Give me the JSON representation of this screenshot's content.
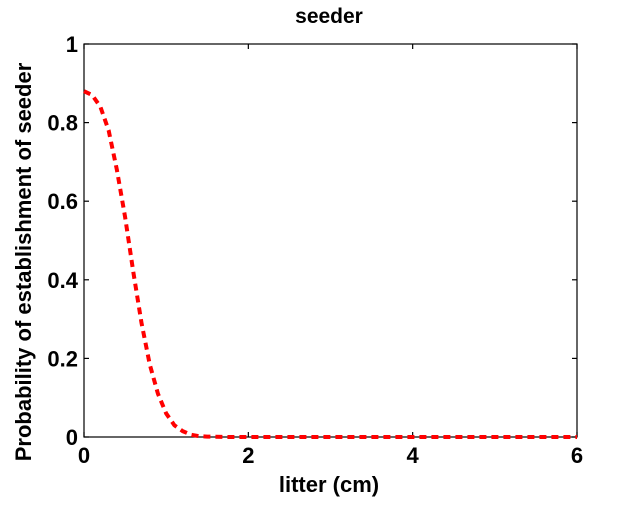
{
  "chart_data": {
    "type": "line",
    "title": "seeder",
    "xlabel": "litter (cm)",
    "ylabel": "Probability of establishment of seeder",
    "xlim": [
      0,
      6
    ],
    "ylim": [
      0,
      1
    ],
    "x_ticks": [
      0,
      2,
      4,
      6
    ],
    "y_ticks": [
      0,
      0.2,
      0.4,
      0.6,
      0.8,
      1
    ],
    "x_tick_labels": [
      "0",
      "2",
      "4",
      "6"
    ],
    "y_tick_labels": [
      "0",
      "0.2",
      "0.4",
      "0.6",
      "0.8",
      "1"
    ],
    "grid": false,
    "legend": "none",
    "series": [
      {
        "line_style": "dashed",
        "color": "#ff0000",
        "x": [
          0,
          0.1,
          0.2,
          0.3,
          0.4,
          0.5,
          0.6,
          0.7,
          0.8,
          0.9,
          1.0,
          1.1,
          1.2,
          1.3,
          1.4,
          1.5,
          1.75,
          2,
          2.5,
          3,
          3.5,
          4,
          4.5,
          5,
          5.5,
          6
        ],
        "y": [
          0.88,
          0.87,
          0.84,
          0.78,
          0.68,
          0.56,
          0.42,
          0.29,
          0.185,
          0.11,
          0.06,
          0.03,
          0.015,
          0.006,
          0.002,
          0.001,
          0,
          0,
          0,
          0,
          0,
          0,
          0,
          0,
          0,
          0
        ]
      }
    ]
  }
}
